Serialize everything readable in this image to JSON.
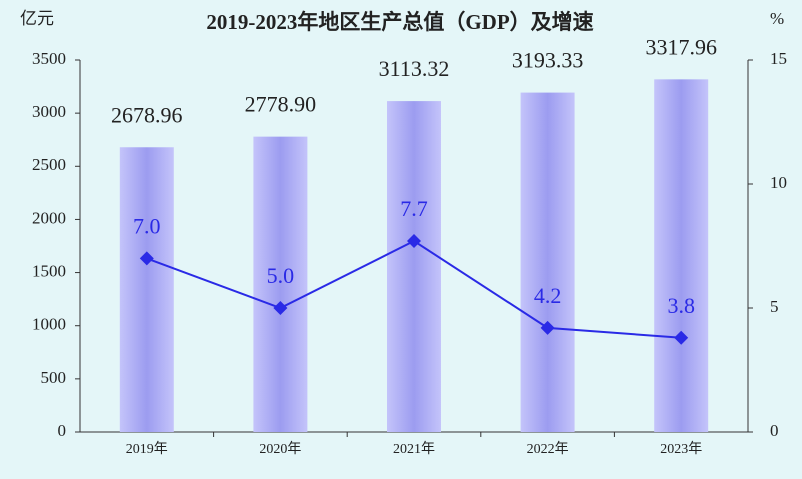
{
  "chart_data": {
    "type": "bar",
    "title": "2019-2023年地区生产总值（GDP）及增速",
    "y_label": "亿元",
    "y2_label": "%",
    "categories": [
      "2019年",
      "2020年",
      "2021年",
      "2022年",
      "2023年"
    ],
    "series": [
      {
        "name": "地区生产总值",
        "type": "bar",
        "color": "#a8a8f4",
        "values": [
          2678.96,
          2778.9,
          3113.32,
          3193.33,
          3317.96
        ],
        "value_labels": [
          "2678.96",
          "2778.90",
          "3113.32",
          "3193.33",
          "3317.96"
        ]
      },
      {
        "name": "增速",
        "type": "line",
        "axis": "y2",
        "color": "#2a2ae6",
        "values": [
          7.0,
          5.0,
          7.7,
          4.2,
          3.8
        ],
        "value_labels": [
          "7.0",
          "5.0",
          "7.7",
          "4.2",
          "3.8"
        ]
      }
    ],
    "ylim": [
      0,
      3500
    ],
    "yticks": [
      0,
      500,
      1000,
      1500,
      2000,
      2500,
      3000,
      3500
    ],
    "y2lim": [
      0,
      15
    ],
    "y2ticks": [
      0,
      5,
      10,
      15
    ]
  }
}
